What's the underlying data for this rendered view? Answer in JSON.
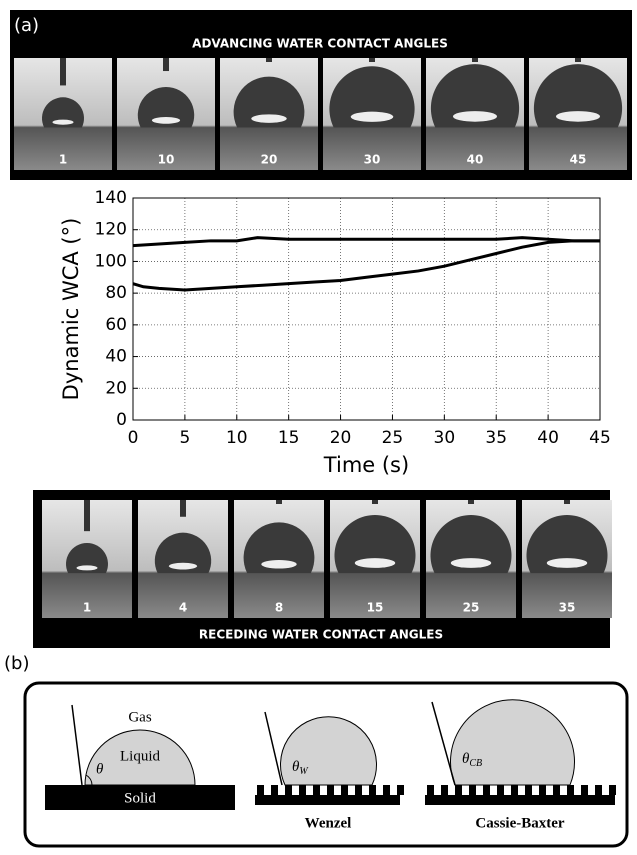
{
  "panel_a": "(a)",
  "advancing": {
    "title": "ADVANCING WATER CONTACT ANGLES",
    "frames": [
      "1",
      "10",
      "20",
      "30",
      "40",
      "45"
    ]
  },
  "receding": {
    "title": "RECEDING WATER CONTACT ANGLES",
    "frames": [
      "1",
      "4",
      "8",
      "15",
      "25",
      "35"
    ]
  },
  "chart_data": {
    "type": "line",
    "x_label": "Time (s)",
    "y_label": "Dynamic WCA (°)",
    "xlim": [
      0,
      45
    ],
    "xticks": [
      0,
      5,
      10,
      15,
      20,
      25,
      30,
      35,
      40,
      45
    ],
    "ylim": [
      0,
      140
    ],
    "yticks": [
      0,
      20,
      40,
      60,
      80,
      100,
      120,
      140
    ],
    "grid": true,
    "series": [
      {
        "color": "#000000",
        "x": [
          0,
          2.5,
          5,
          7.5,
          10,
          12,
          15,
          17.5,
          20,
          22.5,
          25,
          27.5,
          30,
          32.5,
          35,
          37.5,
          40,
          42.5,
          45
        ],
        "values": [
          110,
          111,
          112,
          113,
          113,
          115,
          114,
          114,
          114,
          114,
          114,
          114,
          114,
          114,
          114,
          115,
          114,
          113,
          113
        ]
      },
      {
        "color": "#000000",
        "x": [
          0,
          1,
          2.5,
          5,
          7.5,
          10,
          12.5,
          15,
          17.5,
          20,
          22.5,
          25,
          27.5,
          30,
          32.5,
          35,
          37.5,
          40,
          42.5,
          45
        ],
        "values": [
          86,
          84,
          83,
          82,
          83,
          84,
          85,
          86,
          87,
          88,
          90,
          92,
          94,
          97,
          101,
          105,
          109,
          112,
          113,
          113
        ]
      }
    ]
  },
  "panel_b": "(b)",
  "diagram": {
    "gas": "Gas",
    "liquid": "Liquid",
    "solid": "Solid",
    "theta": "θ",
    "theta_w": {
      "symbol": "θ",
      "sub": "W"
    },
    "theta_cb": {
      "symbol": "θ",
      "sub": "CB"
    },
    "wenzel": "Wenzel",
    "cassie_baxter": "Cassie-Baxter"
  }
}
